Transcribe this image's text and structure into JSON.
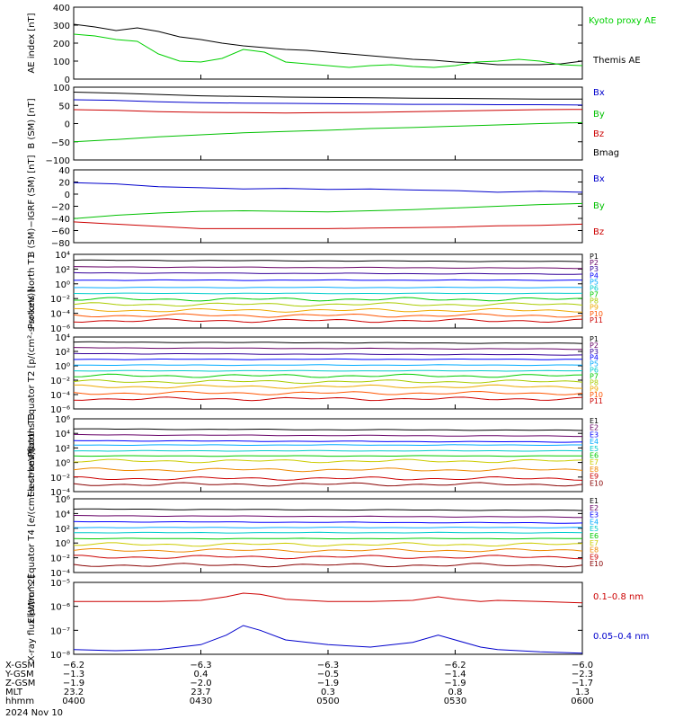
{
  "chart_data": [
    {
      "type": "line",
      "panel": "ae",
      "ylabel": "AE index [nT]",
      "ylim": [
        0,
        400
      ],
      "yticks": [
        "400",
        "300",
        "200",
        "100",
        "0"
      ],
      "x": [
        0,
        5,
        10,
        15,
        20,
        25,
        30,
        35,
        40,
        45,
        50,
        55,
        60,
        65,
        70,
        75,
        80,
        85,
        90,
        95,
        100,
        105,
        110,
        115,
        120
      ],
      "series": [
        {
          "name": "Themis AE",
          "color": "#000000",
          "values": [
            305,
            290,
            270,
            285,
            265,
            235,
            220,
            200,
            185,
            175,
            165,
            160,
            150,
            140,
            130,
            120,
            110,
            105,
            95,
            90,
            80,
            80,
            80,
            85,
            100
          ]
        },
        {
          "name": "Kyoto proxy AE",
          "color": "#00d000",
          "values": [
            250,
            240,
            220,
            210,
            140,
            100,
            95,
            115,
            165,
            150,
            95,
            85,
            75,
            65,
            75,
            80,
            70,
            65,
            75,
            95,
            100,
            110,
            100,
            80,
            75
          ]
        }
      ]
    },
    {
      "type": "line",
      "panel": "b-sm",
      "ylabel": "B (SM) [nT]",
      "ylim": [
        -110,
        110
      ],
      "yticks": [
        "100",
        "50",
        "0",
        "−50",
        "−100"
      ],
      "x": [
        0,
        10,
        20,
        30,
        40,
        50,
        60,
        70,
        80,
        90,
        100,
        110,
        120
      ],
      "series": [
        {
          "name": "Bx",
          "color": "#0000cc",
          "values": [
            72,
            70,
            66,
            63,
            62,
            61,
            60,
            59,
            58,
            58,
            57,
            57,
            56
          ]
        },
        {
          "name": "By",
          "color": "#00c000",
          "values": [
            -55,
            -48,
            -40,
            -34,
            -28,
            -24,
            -20,
            -15,
            -12,
            -8,
            -4,
            0,
            3
          ]
        },
        {
          "name": "Bz",
          "color": "#cc0000",
          "values": [
            42,
            40,
            36,
            34,
            33,
            32,
            33,
            34,
            36,
            38,
            40,
            42,
            43
          ]
        },
        {
          "name": "Bmag",
          "color": "#000000",
          "values": [
            95,
            92,
            88,
            84,
            82,
            80,
            79,
            78,
            77,
            76,
            75,
            74,
            74
          ]
        }
      ]
    },
    {
      "type": "line",
      "panel": "b-igrf",
      "ylabel": "B (SM)−IGRF (SM) [nT]",
      "ylim": [
        -85,
        45
      ],
      "yticks": [
        "40",
        "20",
        "0",
        "−20",
        "−40",
        "−60",
        "−80"
      ],
      "x": [
        0,
        10,
        20,
        30,
        40,
        50,
        60,
        70,
        80,
        90,
        100,
        110,
        120
      ],
      "series": [
        {
          "name": "Bx",
          "color": "#0000cc",
          "values": [
            22,
            20,
            15,
            13,
            11,
            12,
            10,
            11,
            9,
            8,
            5,
            7,
            5
          ]
        },
        {
          "name": "By",
          "color": "#00c000",
          "values": [
            -42,
            -36,
            -32,
            -29,
            -28,
            -29,
            -30,
            -28,
            -26,
            -23,
            -20,
            -17,
            -15
          ]
        },
        {
          "name": "Bz",
          "color": "#cc0000",
          "values": [
            -48,
            -52,
            -56,
            -60,
            -60,
            -60,
            -60,
            -59,
            -58,
            -57,
            -55,
            -54,
            -52
          ]
        }
      ]
    },
    {
      "type": "line",
      "panel": "protons-north",
      "ylabel": "Protons North T1",
      "ylim": [
        "1e-6",
        "1e4"
      ],
      "yticks": [
        "10⁴",
        "10²",
        "10⁰",
        "10⁻²",
        "10⁻⁴",
        "10⁻⁶"
      ],
      "channels": [
        "P1",
        "P2",
        "P3",
        "P4",
        "P5",
        "P6",
        "P7",
        "P8",
        "P9",
        "P10",
        "P11"
      ],
      "channel_colors": [
        "#000000",
        "#660066",
        "#330099",
        "#0000ff",
        "#00aaff",
        "#00cccc",
        "#00cc00",
        "#aacc00",
        "#eeaa00",
        "#ff5500",
        "#cc0000"
      ],
      "levels_log10": [
        3.2,
        2.3,
        1.5,
        0.5,
        -0.5,
        -1.3,
        -2.1,
        -2.8,
        -3.6,
        -4.3,
        -5.0
      ]
    },
    {
      "type": "line",
      "panel": "protons-equator",
      "ylabel": "Protons Equator T2 [p/(cm²-s-sr-keV)]",
      "ylim": [
        "1e-6",
        "1e4"
      ],
      "yticks": [
        "10⁴",
        "10²",
        "10⁰",
        "10⁻²",
        "10⁻⁴",
        "10⁻⁶"
      ],
      "channels": [
        "P1",
        "P2",
        "P3",
        "P4",
        "P5",
        "P6",
        "P7",
        "P8",
        "P9",
        "P10",
        "P11"
      ],
      "channel_colors": [
        "#000000",
        "#660066",
        "#330099",
        "#0000ff",
        "#00aaff",
        "#00cccc",
        "#00cc00",
        "#aacc00",
        "#eeaa00",
        "#ff5500",
        "#cc0000"
      ],
      "levels_log10": [
        3.3,
        2.5,
        1.7,
        0.9,
        0.1,
        -0.7,
        -1.4,
        -2.2,
        -2.9,
        -3.8,
        -4.6
      ]
    },
    {
      "type": "line",
      "panel": "electrons-north",
      "ylabel": "Electrons North T3",
      "ylim": [
        "1e-4",
        "1e6"
      ],
      "yticks": [
        "10⁶",
        "10⁴",
        "10²",
        "10⁰",
        "10⁻²",
        "10⁻⁴"
      ],
      "channels": [
        "E1",
        "E2",
        "E3",
        "E4",
        "E5",
        "E6",
        "E7",
        "E8",
        "E9",
        "E10"
      ],
      "channel_colors": [
        "#000000",
        "#660066",
        "#0000ff",
        "#00aaff",
        "#00cccc",
        "#00cc00",
        "#cccc00",
        "#ee8800",
        "#cc0000",
        "#880000"
      ],
      "levels_log10": [
        4.6,
        3.8,
        3.0,
        2.4,
        1.6,
        0.9,
        0.2,
        -1.0,
        -2.2,
        -3.0
      ]
    },
    {
      "type": "line",
      "panel": "electrons-equator",
      "ylabel": "Electrons Equator T4 [e/(cm²-s-sr-keV)]",
      "ylim": [
        "1e-4",
        "1e6"
      ],
      "yticks": [
        "10⁶",
        "10⁴",
        "10²",
        "10⁰",
        "10⁻²",
        "10⁻⁴"
      ],
      "channels": [
        "E1",
        "E2",
        "E3",
        "E4",
        "E5",
        "E6",
        "E7",
        "E8",
        "E9",
        "E10"
      ],
      "channel_colors": [
        "#000000",
        "#660066",
        "#0000ff",
        "#00aaff",
        "#00cccc",
        "#00cc00",
        "#cccc00",
        "#ee8800",
        "#cc0000",
        "#880000"
      ],
      "levels_log10": [
        4.6,
        3.7,
        2.9,
        2.1,
        1.4,
        0.6,
        -0.2,
        -1.0,
        -1.9,
        -3.0
      ]
    },
    {
      "type": "line",
      "panel": "xray",
      "ylabel": "X-ray flux [W/m^2]",
      "ylim": [
        "1e-8",
        "1e-5"
      ],
      "yticks": [
        "10⁻⁵",
        "10⁻⁶",
        "10⁻⁷",
        "10⁻⁸"
      ],
      "x": [
        0,
        10,
        20,
        30,
        36,
        40,
        44,
        50,
        60,
        70,
        80,
        86,
        90,
        96,
        100,
        110,
        120
      ],
      "series": [
        {
          "name": "0.1–0.8 nm",
          "color": "#cc0000",
          "log_values": [
            -5.8,
            -5.8,
            -5.8,
            -5.75,
            -5.6,
            -5.45,
            -5.5,
            -5.7,
            -5.8,
            -5.8,
            -5.75,
            -5.6,
            -5.7,
            -5.8,
            -5.75,
            -5.8,
            -5.85
          ]
        },
        {
          "name": "0.05–0.4 nm",
          "color": "#0000cc",
          "log_values": [
            -7.8,
            -7.85,
            -7.8,
            -7.6,
            -7.2,
            -6.8,
            -7.0,
            -7.4,
            -7.6,
            -7.7,
            -7.5,
            -7.2,
            -7.4,
            -7.7,
            -7.8,
            -7.9,
            -7.95
          ]
        }
      ]
    }
  ],
  "footer": {
    "rows": [
      {
        "label": "X-GSM",
        "values": [
          "−6.2",
          "−6.3",
          "−6.3",
          "−6.2",
          "−6.0"
        ]
      },
      {
        "label": "Y-GSM",
        "values": [
          "−1.3",
          "0.4",
          "−0.5",
          "−1.4",
          "−2.3"
        ]
      },
      {
        "label": "Z-GSM",
        "values": [
          "−1.9",
          "−2.0",
          "−1.9",
          "−1.9",
          "−1.7"
        ]
      },
      {
        "label": "MLT",
        "values": [
          "23.2",
          "23.7",
          "0.3",
          "0.8",
          "1.3"
        ]
      },
      {
        "label": "hhmm",
        "values": [
          "0400",
          "0430",
          "0500",
          "0530",
          "0600"
        ]
      }
    ],
    "date": "2024 Nov 10"
  }
}
